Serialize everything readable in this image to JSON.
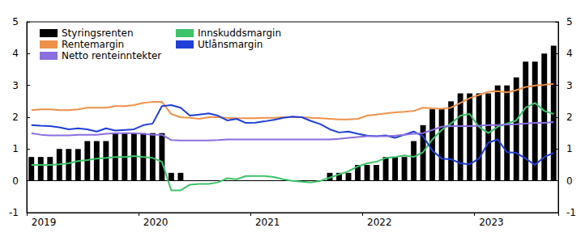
{
  "chart_data": {
    "type": "line",
    "categories": [
      "2019",
      null,
      null,
      null,
      null,
      null,
      null,
      null,
      null,
      null,
      null,
      null,
      "2020",
      null,
      null,
      null,
      null,
      null,
      null,
      null,
      null,
      null,
      null,
      null,
      "2021",
      null,
      null,
      null,
      null,
      null,
      null,
      null,
      null,
      null,
      null,
      null,
      "2022",
      null,
      null,
      null,
      null,
      null,
      null,
      null,
      null,
      null,
      null,
      null,
      "2023",
      null,
      null,
      null,
      null,
      null,
      null,
      null,
      null
    ],
    "series": [
      {
        "name": "Styringsrenten",
        "type": "bar",
        "color": "#000000",
        "values": [
          0.75,
          0.75,
          0.75,
          1,
          1,
          1,
          1.25,
          1.25,
          1.25,
          1.5,
          1.5,
          1.5,
          1.5,
          1.5,
          1.5,
          0.25,
          0.25,
          0,
          0,
          0,
          0,
          0,
          0,
          0,
          0,
          0,
          0,
          0,
          0,
          0,
          0,
          0,
          0.25,
          0.25,
          0.25,
          0.5,
          0.5,
          0.5,
          0.75,
          0.75,
          0.75,
          1.25,
          1.75,
          2.25,
          2.25,
          2.5,
          2.75,
          2.75,
          2.75,
          2.75,
          3,
          3,
          3.25,
          3.75,
          3.75,
          4,
          4.25
        ]
      },
      {
        "name": "Innskuddsmargin",
        "type": "line",
        "color": "#3cc36a",
        "values": [
          0.5,
          0.5,
          0.5,
          0.52,
          0.55,
          0.62,
          0.65,
          0.7,
          0.72,
          0.75,
          0.75,
          0.78,
          0.75,
          0.72,
          0.6,
          -0.3,
          -0.3,
          -0.12,
          -0.1,
          -0.1,
          -0.05,
          0.08,
          0.05,
          0.15,
          0.15,
          0.15,
          0.12,
          0.05,
          0,
          -0.03,
          -0.05,
          0,
          0.1,
          0.2,
          0.3,
          0.45,
          0.55,
          0.6,
          0.72,
          0.75,
          0.8,
          0.75,
          0.9,
          1.3,
          1.6,
          1.8,
          2.05,
          2.1,
          1.7,
          1.5,
          1.7,
          1.8,
          1.9,
          2.3,
          2.45,
          2.2,
          2.1
        ]
      },
      {
        "name": "Rentemargin",
        "type": "line",
        "color": "#f0914a",
        "values": [
          2.22,
          2.25,
          2.25,
          2.22,
          2.22,
          2.25,
          2.3,
          2.3,
          2.3,
          2.35,
          2.35,
          2.38,
          2.45,
          2.48,
          2.48,
          2.1,
          2,
          1.98,
          1.95,
          2,
          2,
          1.98,
          1.97,
          1.97,
          1.97,
          1.98,
          1.98,
          2,
          2,
          2,
          1.98,
          1.97,
          1.95,
          1.93,
          1.93,
          1.95,
          2.05,
          2.08,
          2.12,
          2.15,
          2.17,
          2.2,
          2.3,
          2.28,
          2.27,
          2.3,
          2.45,
          2.6,
          2.7,
          2.8,
          2.82,
          2.78,
          2.85,
          2.95,
          3,
          3.02,
          3.05
        ]
      },
      {
        "name": "Utlånsmargin",
        "type": "line",
        "color": "#1f3fd6",
        "values": [
          1.75,
          1.73,
          1.72,
          1.68,
          1.62,
          1.65,
          1.62,
          1.55,
          1.65,
          1.58,
          1.6,
          1.62,
          1.75,
          1.8,
          2.35,
          2.38,
          2.3,
          2.05,
          2.08,
          2.12,
          2.05,
          1.9,
          1.95,
          1.82,
          1.83,
          1.87,
          1.92,
          1.98,
          2.02,
          2,
          1.88,
          1.78,
          1.62,
          1.52,
          1.55,
          1.48,
          1.42,
          1.4,
          1.43,
          1.35,
          1.45,
          1.55,
          1.4,
          0.95,
          0.7,
          0.68,
          0.55,
          0.52,
          0.7,
          1.2,
          1.3,
          0.9,
          0.88,
          0.7,
          0.5,
          0.75,
          0.88
        ]
      },
      {
        "name": "Netto renteinntekter",
        "type": "line",
        "color": "#8a6fe0",
        "values": [
          1.5,
          1.45,
          1.43,
          1.43,
          1.43,
          1.45,
          1.45,
          1.45,
          1.48,
          1.5,
          1.5,
          1.5,
          1.48,
          1.45,
          1.45,
          1.28,
          1.27,
          1.27,
          1.27,
          1.27,
          1.28,
          1.3,
          1.3,
          1.3,
          1.3,
          1.3,
          1.3,
          1.3,
          1.3,
          1.3,
          1.3,
          1.3,
          1.3,
          1.32,
          1.35,
          1.38,
          1.4,
          1.4,
          1.4,
          1.42,
          1.45,
          1.48,
          1.5,
          1.6,
          1.7,
          1.72,
          1.72,
          1.72,
          1.73,
          1.75,
          1.75,
          1.77,
          1.78,
          1.8,
          1.82,
          1.82,
          1.85
        ]
      }
    ],
    "ylim": [
      -1,
      5
    ],
    "yticks": [
      -1,
      0,
      1,
      2,
      3,
      4,
      5
    ],
    "y2lim": [
      -1,
      5
    ],
    "y2ticks": [
      -1,
      0,
      1,
      2,
      3,
      4,
      5
    ],
    "grid": false,
    "legend": "upper left"
  }
}
